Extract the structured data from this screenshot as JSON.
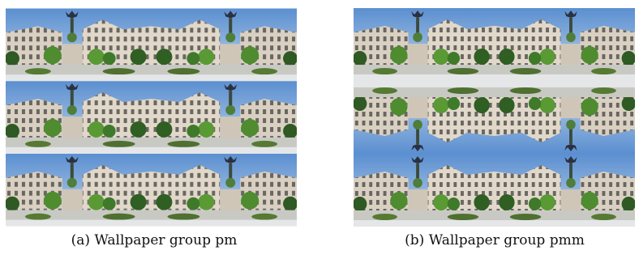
{
  "figures": [
    {
      "caption": "(a) Wallpaper group pm"
    },
    {
      "caption": "(b) Wallpaper group pmm"
    }
  ]
}
